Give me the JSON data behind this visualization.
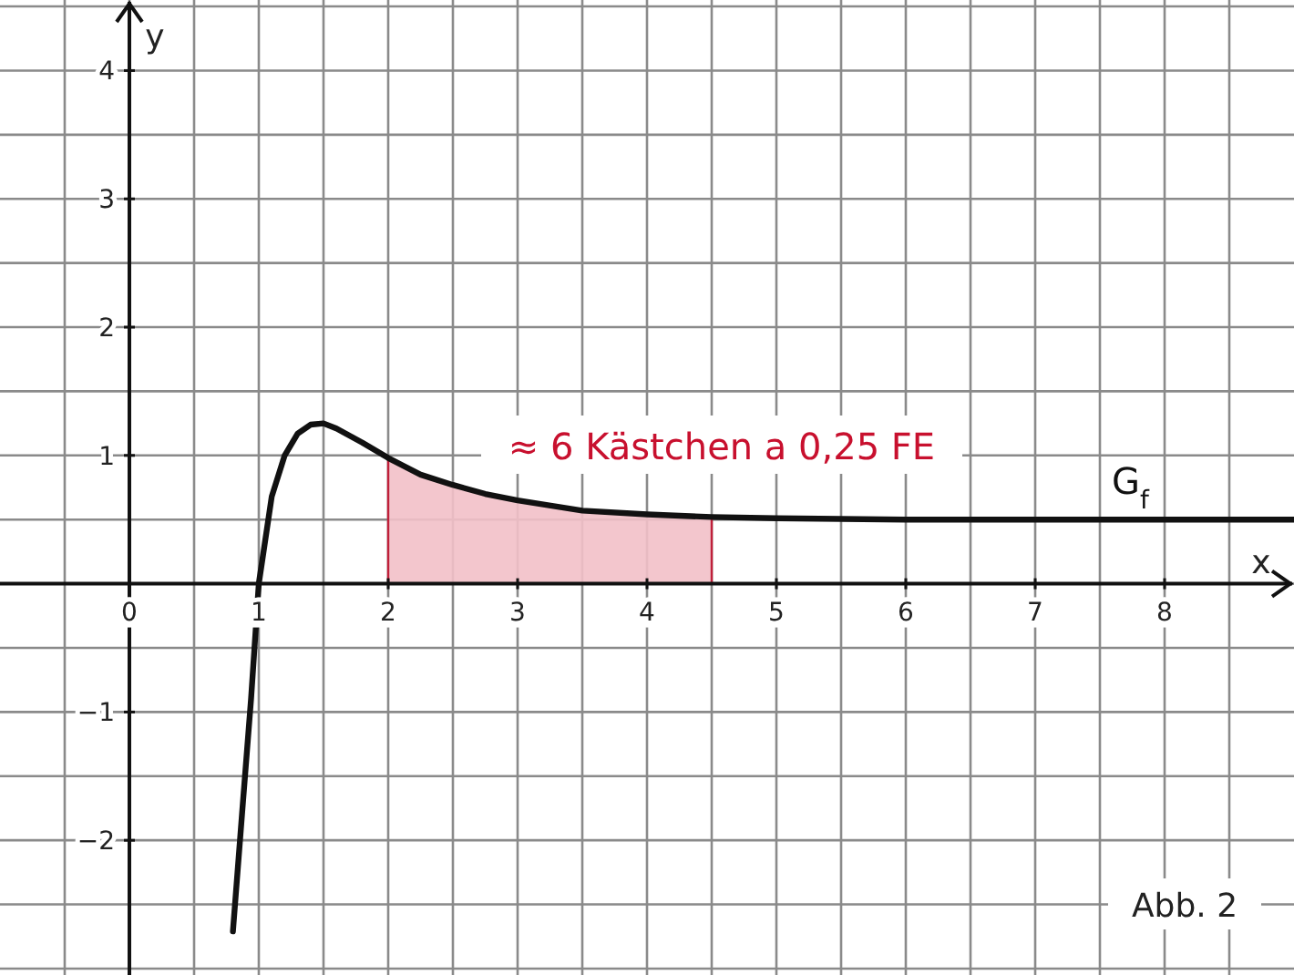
{
  "chart_data": {
    "type": "line",
    "xlabel": "x",
    "ylabel": "y",
    "xlim": [
      -1,
      9
    ],
    "ylim": [
      -3.05,
      4.55
    ],
    "xticks": [
      {
        "value": -0.5,
        "label": null
      },
      {
        "value": 0,
        "label": "0"
      },
      {
        "value": 0.5,
        "label": null
      },
      1,
      {
        "value": 1.5,
        "label": null
      },
      2,
      {
        "value": 2.5,
        "label": null
      },
      3,
      {
        "value": 3.5,
        "label": null
      },
      4,
      {
        "value": 4.5,
        "label": null
      },
      5,
      {
        "value": 5.5,
        "label": null
      },
      6,
      {
        "value": 6.5,
        "label": null
      },
      7,
      {
        "value": 7.5,
        "label": null
      },
      8,
      {
        "value": 8.5,
        "label": null
      }
    ],
    "yticks": [
      {
        "value": -3,
        "label": null
      },
      {
        "value": -2.5,
        "label": null
      },
      {
        "value": -2,
        "label": "−2"
      },
      {
        "value": -1.5,
        "label": null
      },
      {
        "value": -1,
        "label": "−1"
      },
      {
        "value": -0.5,
        "label": null
      },
      {
        "value": 0,
        "label": null
      },
      {
        "value": 0.5,
        "label": null
      },
      1,
      {
        "value": 1.5,
        "label": null
      },
      2,
      {
        "value": 2.5,
        "label": null
      },
      3,
      {
        "value": 3.5,
        "label": null
      },
      4,
      {
        "value": 4.5,
        "label": null
      }
    ],
    "grid": true,
    "legend": false,
    "series": [
      {
        "name": "G$_{f}$",
        "color": "#111111",
        "x": [
          0.8,
          0.87,
          0.94,
          1.0,
          1.1,
          1.2,
          1.3,
          1.4,
          1.5,
          1.6,
          1.8,
          2.0,
          2.25,
          2.5,
          2.75,
          3.0,
          3.5,
          4.0,
          4.5,
          5.0,
          6.0,
          7.0,
          8.0,
          9.0
        ],
        "values": [
          -2.71,
          -1.8,
          -0.9,
          0,
          0.68,
          1.0,
          1.17,
          1.24,
          1.25,
          1.21,
          1.1,
          0.98,
          0.85,
          0.77,
          0.7,
          0.65,
          0.57,
          0.54,
          0.52,
          0.51,
          0.5,
          0.5,
          0.5,
          0.5
        ]
      },
      {
        "type": "area",
        "color": "#f2c0c8",
        "x": [
          2.0,
          2.25,
          2.5,
          2.75,
          3.0,
          3.5,
          4.0,
          4.5
        ],
        "values": [
          0.98,
          0.85,
          0.77,
          0.7,
          0.65,
          0.57,
          0.54,
          0.52
        ]
      }
    ],
    "annotations": [
      "≈ 6 Kästchen a 0,25 FE",
      "Abb. 2"
    ]
  }
}
